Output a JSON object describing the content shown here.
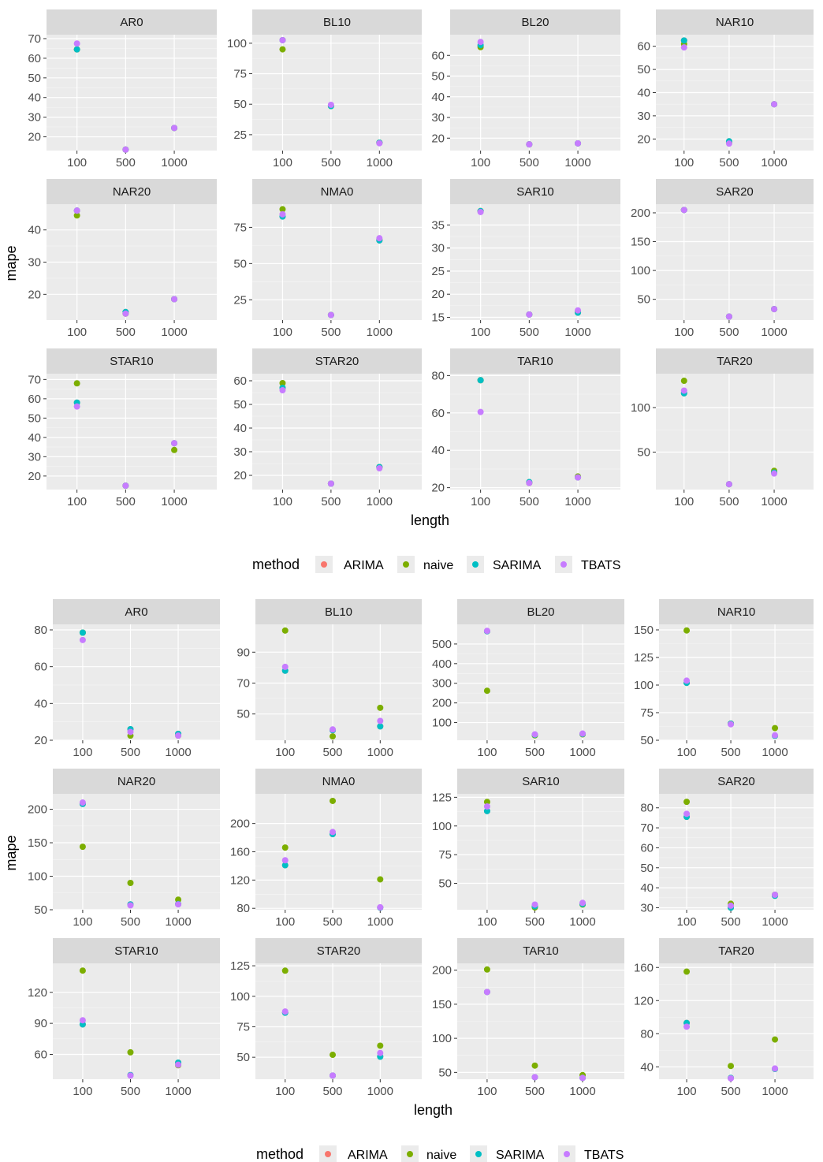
{
  "figures": [
    {
      "xlabel": "length",
      "ylabel": "mape",
      "legend_title": "method",
      "panels": [
        {
          "title": "AR0",
          "yticks": [
            20,
            30,
            40,
            50,
            60,
            70
          ],
          "ylim": [
            13,
            72
          ]
        },
        {
          "title": "BL10",
          "yticks": [
            25,
            50,
            75,
            100
          ],
          "ylim": [
            12,
            107
          ]
        },
        {
          "title": "BL20",
          "yticks": [
            20,
            30,
            40,
            50,
            60
          ],
          "ylim": [
            14,
            70
          ]
        },
        {
          "title": "NAR10",
          "yticks": [
            20,
            30,
            40,
            50,
            60
          ],
          "ylim": [
            15,
            65
          ]
        },
        {
          "title": "NAR20",
          "yticks": [
            20,
            30,
            40
          ],
          "ylim": [
            12,
            48
          ]
        },
        {
          "title": "NMA0",
          "yticks": [
            25,
            50,
            75
          ],
          "ylim": [
            11,
            91
          ]
        },
        {
          "title": "SAR10",
          "yticks": [
            15,
            20,
            25,
            30,
            35
          ],
          "ylim": [
            14.4,
            39.5
          ]
        },
        {
          "title": "SAR20",
          "yticks": [
            50,
            100,
            150,
            200
          ],
          "ylim": [
            14,
            215
          ]
        },
        {
          "title": "STAR10",
          "yticks": [
            20,
            30,
            40,
            50,
            60,
            70
          ],
          "ylim": [
            13,
            73
          ]
        },
        {
          "title": "STAR20",
          "yticks": [
            20,
            30,
            40,
            50,
            60
          ],
          "ylim": [
            14,
            63
          ]
        },
        {
          "title": "TAR10",
          "yticks": [
            20,
            40,
            60,
            80
          ],
          "ylim": [
            19,
            81
          ]
        },
        {
          "title": "TAR20",
          "yticks": [
            50,
            100
          ],
          "ylim": [
            8,
            138
          ]
        }
      ]
    },
    {
      "xlabel": "length",
      "ylabel": "mape",
      "legend_title": "method",
      "panels": [
        {
          "title": "AR0",
          "yticks": [
            20,
            40,
            60,
            80
          ],
          "ylim": [
            20,
            83
          ]
        },
        {
          "title": "BL10",
          "yticks": [
            50,
            70,
            90
          ],
          "ylim": [
            33,
            108
          ]
        },
        {
          "title": "BL20",
          "yticks": [
            100,
            200,
            300,
            400,
            500
          ],
          "ylim": [
            10,
            600
          ]
        },
        {
          "title": "NAR10",
          "yticks": [
            50,
            75,
            100,
            125,
            150
          ],
          "ylim": [
            50,
            155
          ]
        },
        {
          "title": "NAR20",
          "yticks": [
            50,
            100,
            150,
            200
          ],
          "ylim": [
            50,
            223
          ]
        },
        {
          "title": "NMA0",
          "yticks": [
            80,
            120,
            160,
            200
          ],
          "ylim": [
            78,
            242
          ]
        },
        {
          "title": "SAR10",
          "yticks": [
            50,
            75,
            100,
            125
          ],
          "ylim": [
            27,
            128
          ]
        },
        {
          "title": "SAR20",
          "yticks": [
            30,
            40,
            50,
            60,
            70,
            80
          ],
          "ylim": [
            29,
            87
          ]
        },
        {
          "title": "STAR10",
          "yticks": [
            60,
            90,
            120
          ],
          "ylim": [
            36,
            148
          ]
        },
        {
          "title": "STAR20",
          "yticks": [
            50,
            75,
            100,
            125
          ],
          "ylim": [
            32,
            127
          ]
        },
        {
          "title": "TAR10",
          "yticks": [
            50,
            100,
            150,
            200
          ],
          "ylim": [
            40,
            210
          ]
        },
        {
          "title": "TAR20",
          "yticks": [
            40,
            80,
            120,
            160
          ],
          "ylim": [
            25,
            165
          ]
        }
      ]
    }
  ],
  "legend": {
    "methods": [
      "ARIMA",
      "naive",
      "SARIMA",
      "TBATS"
    ],
    "colors": {
      "ARIMA": "#F8766D",
      "naive": "#7CAE00",
      "SARIMA": "#00BFC4",
      "TBATS": "#C77CFF"
    }
  },
  "chart_data": [
    {
      "type": "scatter",
      "facet_by": "model",
      "x_categories": [
        "100",
        "500",
        "1000"
      ],
      "xlabel": "length",
      "ylabel": "mape",
      "series_names": [
        "ARIMA",
        "naive",
        "SARIMA",
        "TBATS"
      ],
      "panels": [
        {
          "title": "AR0",
          "series": {
            "ARIMA": [
              64.5,
              13.5,
              24.5
            ],
            "naive": [
              64.5,
              13.5,
              24.5
            ],
            "SARIMA": [
              64.5,
              13.5,
              24.5
            ],
            "TBATS": [
              67.5,
              13.5,
              24.5
            ]
          }
        },
        {
          "title": "BL10",
          "series": {
            "ARIMA": [
              102.5,
              48.5,
              18.5
            ],
            "naive": [
              95.0,
              48.5,
              18.5
            ],
            "SARIMA": [
              102.5,
              48.5,
              18.5
            ],
            "TBATS": [
              102.5,
              49.5,
              18.0
            ]
          }
        },
        {
          "title": "BL20",
          "series": {
            "ARIMA": [
              64.5,
              17.0,
              17.5
            ],
            "naive": [
              64.0,
              17.0,
              17.5
            ],
            "SARIMA": [
              65.0,
              17.0,
              17.5
            ],
            "TBATS": [
              66.5,
              17.0,
              17.5
            ]
          }
        },
        {
          "title": "NAR10",
          "series": {
            "ARIMA": [
              62.5,
              19.0,
              35.0
            ],
            "naive": [
              61.0,
              18.5,
              35.0
            ],
            "SARIMA": [
              62.5,
              19.0,
              35.0
            ],
            "TBATS": [
              59.5,
              18.0,
              35.0
            ]
          }
        },
        {
          "title": "NAR20",
          "series": {
            "ARIMA": [
              46.0,
              14.5,
              18.5
            ],
            "naive": [
              44.5,
              14.0,
              18.5
            ],
            "SARIMA": [
              46.0,
              14.5,
              18.5
            ],
            "TBATS": [
              46.0,
              14.0,
              18.5
            ]
          }
        },
        {
          "title": "NMA0",
          "series": {
            "ARIMA": [
              82.5,
              14.5,
              66.0
            ],
            "naive": [
              87.5,
              14.5,
              66.5
            ],
            "SARIMA": [
              82.5,
              14.5,
              66.0
            ],
            "TBATS": [
              84.0,
              14.5,
              67.5
            ]
          }
        },
        {
          "title": "SAR10",
          "series": {
            "ARIMA": [
              38.0,
              15.6,
              16.0
            ],
            "naive": [
              38.0,
              15.6,
              16.2
            ],
            "SARIMA": [
              38.0,
              15.6,
              16.0
            ],
            "TBATS": [
              37.8,
              15.6,
              16.5
            ]
          }
        },
        {
          "title": "SAR20",
          "series": {
            "ARIMA": [
              205.0,
              20.0,
              33.0
            ],
            "naive": [
              205.0,
              20.0,
              33.0
            ],
            "SARIMA": [
              205.0,
              20.0,
              33.0
            ],
            "TBATS": [
              205.0,
              20.0,
              33.0
            ]
          }
        },
        {
          "title": "STAR10",
          "series": {
            "ARIMA": [
              58.0,
              15.0,
              37.0
            ],
            "naive": [
              68.0,
              15.0,
              33.5
            ],
            "SARIMA": [
              58.0,
              15.0,
              37.0
            ],
            "TBATS": [
              56.0,
              15.0,
              37.0
            ]
          }
        },
        {
          "title": "STAR20",
          "series": {
            "ARIMA": [
              57.0,
              16.5,
              23.5
            ],
            "naive": [
              59.0,
              16.5,
              23.5
            ],
            "SARIMA": [
              57.0,
              16.5,
              23.5
            ],
            "TBATS": [
              56.0,
              16.5,
              23.0
            ]
          }
        },
        {
          "title": "TAR10",
          "series": {
            "ARIMA": [
              77.5,
              23.0,
              25.5
            ],
            "naive": [
              77.5,
              22.5,
              26.0
            ],
            "SARIMA": [
              77.5,
              23.0,
              25.5
            ],
            "TBATS": [
              60.5,
              22.5,
              25.5
            ]
          }
        },
        {
          "title": "TAR20",
          "series": {
            "ARIMA": [
              116.0,
              14.0,
              27.0
            ],
            "naive": [
              130.0,
              14.0,
              29.0
            ],
            "SARIMA": [
              116.0,
              14.0,
              27.0
            ],
            "TBATS": [
              119.0,
              14.0,
              26.0
            ]
          }
        }
      ]
    },
    {
      "type": "scatter",
      "facet_by": "model",
      "x_categories": [
        "100",
        "500",
        "1000"
      ],
      "xlabel": "length",
      "ylabel": "mape",
      "series_names": [
        "ARIMA",
        "naive",
        "SARIMA",
        "TBATS"
      ],
      "panels": [
        {
          "title": "AR0",
          "series": {
            "ARIMA": [
              78.5,
              26.0,
              23.5
            ],
            "naive": [
              78.5,
              22.5,
              22.5
            ],
            "SARIMA": [
              78.5,
              26.0,
              23.5
            ],
            "TBATS": [
              74.5,
              24.5,
              22.5
            ]
          }
        },
        {
          "title": "BL10",
          "series": {
            "ARIMA": [
              78.0,
              39.5,
              42.0
            ],
            "naive": [
              104.0,
              35.5,
              54.0
            ],
            "SARIMA": [
              78.0,
              39.5,
              42.0
            ],
            "TBATS": [
              80.5,
              40.0,
              45.5
            ]
          }
        },
        {
          "title": "BL20",
          "series": {
            "ARIMA": [
              565.0,
              38.0,
              42.0
            ],
            "naive": [
              262.0,
              35.0,
              40.0
            ],
            "SARIMA": [
              565.0,
              38.0,
              42.0
            ],
            "TBATS": [
              567.0,
              40.0,
              44.0
            ]
          }
        },
        {
          "title": "NAR10",
          "series": {
            "ARIMA": [
              102.0,
              65.0,
              54.0
            ],
            "naive": [
              149.5,
              65.0,
              61.0
            ],
            "SARIMA": [
              102.0,
              65.0,
              54.0
            ],
            "TBATS": [
              104.0,
              64.5,
              54.5
            ]
          }
        },
        {
          "title": "NAR20",
          "series": {
            "ARIMA": [
              208.0,
              58.0,
              58.5
            ],
            "naive": [
              144.0,
              90.0,
              65.0
            ],
            "SARIMA": [
              208.0,
              58.0,
              58.5
            ],
            "TBATS": [
              210.0,
              56.5,
              58.0
            ]
          }
        },
        {
          "title": "NMA0",
          "series": {
            "ARIMA": [
              141.0,
              185.0,
              81.0
            ],
            "naive": [
              166.0,
              232.0,
              121.0
            ],
            "SARIMA": [
              141.0,
              185.0,
              81.0
            ],
            "TBATS": [
              148.0,
              188.0,
              81.5
            ]
          }
        },
        {
          "title": "SAR10",
          "series": {
            "ARIMA": [
              113.0,
              30.0,
              32.0
            ],
            "naive": [
              121.0,
              29.0,
              31.5
            ],
            "SARIMA": [
              113.0,
              30.0,
              32.0
            ],
            "TBATS": [
              117.0,
              31.5,
              33.0
            ]
          }
        },
        {
          "title": "SAR20",
          "series": {
            "ARIMA": [
              75.5,
              30.0,
              36.0
            ],
            "naive": [
              83.0,
              32.0,
              36.5
            ],
            "SARIMA": [
              75.5,
              30.0,
              36.0
            ],
            "TBATS": [
              77.0,
              31.0,
              36.5
            ]
          }
        },
        {
          "title": "STAR10",
          "series": {
            "ARIMA": [
              89.0,
              40.0,
              52.0
            ],
            "naive": [
              141.0,
              62.0,
              49.5
            ],
            "SARIMA": [
              89.0,
              40.0,
              52.0
            ],
            "TBATS": [
              93.0,
              39.5,
              50.0
            ]
          }
        },
        {
          "title": "STAR20",
          "series": {
            "ARIMA": [
              86.5,
              35.0,
              50.5
            ],
            "naive": [
              121.0,
              52.0,
              59.5
            ],
            "SARIMA": [
              86.5,
              35.0,
              50.5
            ],
            "TBATS": [
              87.5,
              35.0,
              53.5
            ]
          }
        },
        {
          "title": "TAR10",
          "series": {
            "ARIMA": [
              168.0,
              43.0,
              42.0
            ],
            "naive": [
              201.0,
              60.0,
              46.0
            ],
            "SARIMA": [
              168.0,
              43.0,
              42.0
            ],
            "TBATS": [
              168.0,
              43.0,
              42.0
            ]
          }
        },
        {
          "title": "TAR20",
          "series": {
            "ARIMA": [
              93.0,
              26.5,
              37.5
            ],
            "naive": [
              155.0,
              41.0,
              73.0
            ],
            "SARIMA": [
              93.0,
              26.5,
              37.5
            ],
            "TBATS": [
              88.5,
              26.0,
              38.0
            ]
          }
        }
      ]
    }
  ]
}
